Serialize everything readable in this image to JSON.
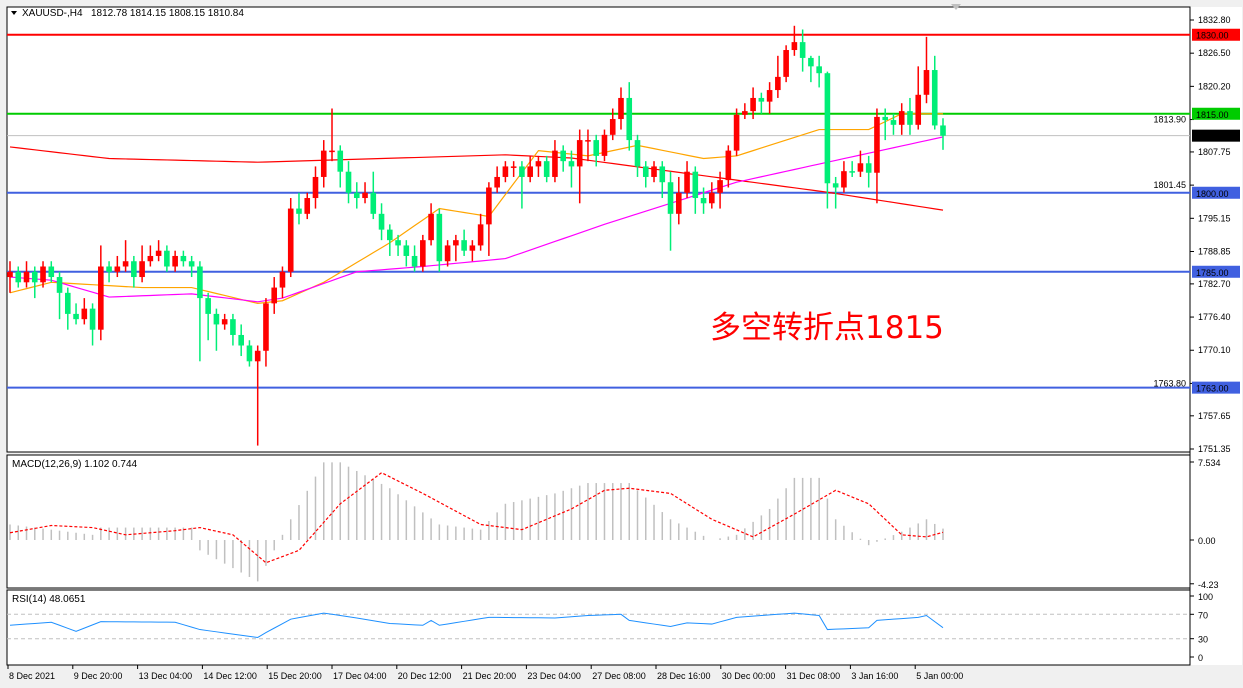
{
  "window": {
    "symbol_label": "XAUUSD-,H4",
    "ohlc_label": "1812.78 1814.15 1808.15 1810.84"
  },
  "annotation": "多空转折点1815",
  "colors": {
    "bull": "#ff0000",
    "bear": "#00ee77",
    "ma_fast": "#ffa500",
    "ma_mid": "#ff00ff",
    "ma_slow": "#ff0000",
    "res": "#ff0000",
    "pivot": "#00cc00",
    "support": "#4060e0",
    "price_line": "#c0c0c0",
    "macd_hist": "#c0c0c0",
    "macd_signal": "#ff0000",
    "rsi": "#1e90ff"
  },
  "chart_data": [
    {
      "type": "candlestick",
      "title": "XAUUSD-,H4",
      "ylim": [
        1751.35,
        1832.8
      ],
      "price_ticks": [
        "1832.80",
        "1826.50",
        "1820.20",
        "1813.90",
        "1807.75",
        "1801.45",
        "1795.15",
        "1788.85",
        "1782.70",
        "1776.40",
        "1770.10",
        "1763.80",
        "1757.65",
        "1751.35"
      ],
      "time_labels": [
        "8 Dec 2021",
        "9 Dec 20:00",
        "13 Dec 04:00",
        "14 Dec 12:00",
        "15 Dec 20:00",
        "17 Dec 04:00",
        "20 Dec 12:00",
        "21 Dec 20:00",
        "23 Dec 04:00",
        "27 Dec 08:00",
        "28 Dec 16:00",
        "30 Dec 00:00",
        "31 Dec 08:00",
        "3 Jan 16:00",
        "5 Jan 00:00"
      ],
      "levels": [
        {
          "price": 1830.0,
          "label": "1830.00",
          "kind": "res"
        },
        {
          "price": 1815.0,
          "label": "1815.00",
          "kind": "pivot"
        },
        {
          "price": 1800.0,
          "label": "1800.00",
          "kind": "support"
        },
        {
          "price": 1785.0,
          "label": "1785.00",
          "kind": "support"
        },
        {
          "price": 1763.0,
          "label": "1763.00",
          "kind": "support"
        }
      ],
      "current_price": {
        "price": 1810.84,
        "label": "1810.84"
      },
      "candles_ohlc": [
        [
          1784,
          1787,
          1781,
          1785
        ],
        [
          1785,
          1786,
          1782,
          1783
        ],
        [
          1783,
          1787,
          1782,
          1785
        ],
        [
          1785,
          1786,
          1780,
          1783
        ],
        [
          1783,
          1787,
          1782,
          1786
        ],
        [
          1786,
          1787,
          1783,
          1784
        ],
        [
          1784,
          1785,
          1776,
          1781
        ],
        [
          1781,
          1782,
          1774,
          1777
        ],
        [
          1777,
          1779,
          1775,
          1776
        ],
        [
          1776,
          1780,
          1775,
          1778
        ],
        [
          1778,
          1779,
          1771,
          1774
        ],
        [
          1774,
          1790,
          1772,
          1786
        ],
        [
          1786,
          1787,
          1783,
          1785
        ],
        [
          1785,
          1788,
          1784,
          1786
        ],
        [
          1786,
          1791,
          1785,
          1787
        ],
        [
          1787,
          1788,
          1782,
          1784
        ],
        [
          1784,
          1790,
          1783,
          1787
        ],
        [
          1787,
          1790,
          1786,
          1788
        ],
        [
          1788,
          1791,
          1787,
          1789
        ],
        [
          1789,
          1790,
          1785,
          1786
        ],
        [
          1786,
          1789,
          1785,
          1788
        ],
        [
          1788,
          1789,
          1786,
          1787
        ],
        [
          1787,
          1788,
          1784,
          1786
        ],
        [
          1786,
          1787,
          1768,
          1780
        ],
        [
          1780,
          1781,
          1772,
          1777
        ],
        [
          1777,
          1778,
          1770,
          1775
        ],
        [
          1775,
          1777,
          1774,
          1776
        ],
        [
          1776,
          1777,
          1771,
          1773
        ],
        [
          1773,
          1775,
          1769,
          1771
        ],
        [
          1771,
          1772,
          1767,
          1768
        ],
        [
          1768,
          1771,
          1752,
          1770
        ],
        [
          1770,
          1780,
          1767,
          1779
        ],
        [
          1779,
          1784,
          1777,
          1782
        ],
        [
          1782,
          1786,
          1780,
          1785
        ],
        [
          1785,
          1799,
          1784,
          1797
        ],
        [
          1797,
          1800,
          1794,
          1796
        ],
        [
          1796,
          1800,
          1795,
          1799
        ],
        [
          1799,
          1805,
          1797,
          1803
        ],
        [
          1803,
          1810,
          1801,
          1808
        ],
        [
          1808,
          1816,
          1806,
          1808
        ],
        [
          1808,
          1809,
          1801,
          1804
        ],
        [
          1804,
          1806,
          1798,
          1800
        ],
        [
          1800,
          1802,
          1797,
          1799
        ],
        [
          1799,
          1802,
          1798,
          1800
        ],
        [
          1800,
          1804,
          1795,
          1796
        ],
        [
          1796,
          1798,
          1791,
          1793
        ],
        [
          1793,
          1794,
          1788,
          1791
        ],
        [
          1791,
          1792,
          1788,
          1790
        ],
        [
          1790,
          1791,
          1786,
          1788
        ],
        [
          1788,
          1790,
          1785,
          1786
        ],
        [
          1786,
          1792,
          1785,
          1791
        ],
        [
          1791,
          1798,
          1790,
          1796
        ],
        [
          1796,
          1797,
          1785,
          1787
        ],
        [
          1787,
          1791,
          1786,
          1790
        ],
        [
          1790,
          1792,
          1787,
          1791
        ],
        [
          1791,
          1793,
          1788,
          1789
        ],
        [
          1789,
          1791,
          1787,
          1790
        ],
        [
          1790,
          1796,
          1789,
          1794
        ],
        [
          1794,
          1802,
          1788,
          1801
        ],
        [
          1801,
          1805,
          1800,
          1803
        ],
        [
          1803,
          1806,
          1802,
          1805
        ],
        [
          1805,
          1806,
          1803,
          1805
        ],
        [
          1805,
          1806,
          1797,
          1803
        ],
        [
          1803,
          1807,
          1802,
          1805
        ],
        [
          1805,
          1807,
          1803,
          1806
        ],
        [
          1806,
          1807,
          1802,
          1803
        ],
        [
          1803,
          1810,
          1802,
          1808
        ],
        [
          1808,
          1809,
          1804,
          1806
        ],
        [
          1806,
          1808,
          1801,
          1805
        ],
        [
          1805,
          1812,
          1798,
          1810
        ],
        [
          1810,
          1812,
          1806,
          1810
        ],
        [
          1810,
          1811,
          1805,
          1807
        ],
        [
          1807,
          1812,
          1806,
          1811
        ],
        [
          1811,
          1816,
          1810,
          1814
        ],
        [
          1814,
          1820,
          1812,
          1818
        ],
        [
          1818,
          1821,
          1808,
          1810
        ],
        [
          1810,
          1811,
          1803,
          1805
        ],
        [
          1805,
          1806,
          1801,
          1803
        ],
        [
          1803,
          1806,
          1802,
          1805
        ],
        [
          1805,
          1806,
          1799,
          1802
        ],
        [
          1802,
          1804,
          1789,
          1796
        ],
        [
          1796,
          1803,
          1794,
          1800
        ],
        [
          1800,
          1806,
          1799,
          1804
        ],
        [
          1804,
          1805,
          1796,
          1799
        ],
        [
          1799,
          1801,
          1796,
          1798
        ],
        [
          1798,
          1802,
          1797,
          1800
        ],
        [
          1800,
          1804,
          1797,
          1802.4
        ],
        [
          1802.4,
          1809,
          1801,
          1808
        ],
        [
          1808,
          1816,
          1807,
          1814.8
        ],
        [
          1814.8,
          1817,
          1814,
          1815.5
        ],
        [
          1815.5,
          1820,
          1814,
          1818
        ],
        [
          1818,
          1819,
          1815,
          1817.3
        ],
        [
          1817.3,
          1821,
          1815,
          1819.5
        ],
        [
          1819.5,
          1826,
          1818,
          1822
        ],
        [
          1822,
          1828,
          1821,
          1827.1
        ],
        [
          1827.1,
          1831.7,
          1826,
          1828.6
        ],
        [
          1828.6,
          1831,
          1823,
          1825.6
        ],
        [
          1825.6,
          1826,
          1821,
          1824
        ],
        [
          1824,
          1826,
          1820,
          1822.7
        ],
        [
          1822.7,
          1823,
          1797,
          1801.8
        ],
        [
          1801.8,
          1803,
          1797,
          1801
        ],
        [
          1801,
          1806,
          1800,
          1804.1
        ],
        [
          1804.1,
          1806,
          1803,
          1804
        ],
        [
          1804,
          1808,
          1803,
          1805.6
        ],
        [
          1805.6,
          1807,
          1801,
          1803.8
        ],
        [
          1803.8,
          1816,
          1798,
          1814.4
        ],
        [
          1814.4,
          1816,
          1810,
          1813.8
        ],
        [
          1813.8,
          1815,
          1811,
          1812.9
        ],
        [
          1812.9,
          1817,
          1811,
          1815.5
        ],
        [
          1815.5,
          1818,
          1811,
          1812.9
        ],
        [
          1812.9,
          1824,
          1812,
          1818.6
        ],
        [
          1818.6,
          1829.6,
          1817,
          1823.3
        ],
        [
          1823.3,
          1826,
          1812,
          1812.78
        ],
        [
          1812.78,
          1814.15,
          1808.15,
          1810.84
        ]
      ],
      "moving_averages": {
        "fast": [
          [
            0,
            1781
          ],
          [
            5,
            1783
          ],
          [
            16,
            1782
          ],
          [
            22,
            1782
          ],
          [
            30,
            1779
          ],
          [
            33,
            1779.5
          ],
          [
            38,
            1783
          ],
          [
            46,
            1790.5
          ],
          [
            52,
            1797
          ],
          [
            58,
            1795.5
          ],
          [
            64,
            1808
          ],
          [
            70,
            1807
          ],
          [
            76,
            1809
          ],
          [
            84,
            1806.5
          ],
          [
            88,
            1807
          ],
          [
            92,
            1809
          ],
          [
            98,
            1812
          ],
          [
            104,
            1812
          ],
          [
            108,
            1815
          ],
          [
            113,
            1815
          ]
        ],
        "mid": [
          [
            0,
            1784
          ],
          [
            5,
            1783.4
          ],
          [
            12,
            1780.2
          ],
          [
            22,
            1780.8
          ],
          [
            30,
            1779.3
          ],
          [
            33,
            1780
          ],
          [
            42,
            1785
          ],
          [
            50,
            1786
          ],
          [
            60,
            1787.5
          ],
          [
            72,
            1794
          ],
          [
            88,
            1802
          ],
          [
            99,
            1805.8
          ],
          [
            113,
            1810.6
          ]
        ],
        "slow": [
          [
            0,
            1808.7
          ],
          [
            12,
            1806.5
          ],
          [
            30,
            1805.8
          ],
          [
            60,
            1807.2
          ],
          [
            68,
            1806.6
          ],
          [
            88,
            1802.4
          ],
          [
            99,
            1800.1
          ],
          [
            113,
            1796.7
          ]
        ]
      }
    },
    {
      "type": "bar+line",
      "title": "MACD(12,26,9) 1.102 0.744",
      "ylim": [
        -4.23,
        7.534
      ],
      "ticks": [
        "7.534",
        "0.00",
        "-4.23"
      ],
      "histogram": [
        [
          0,
          1.5
        ],
        [
          10,
          0.5
        ],
        [
          11,
          1.2
        ],
        [
          22,
          1.2
        ],
        [
          23,
          -1
        ],
        [
          30,
          -4
        ],
        [
          34,
          2
        ],
        [
          38,
          7.5
        ],
        [
          40,
          7.5
        ],
        [
          46,
          5
        ],
        [
          52,
          1.5
        ],
        [
          57,
          1
        ],
        [
          60,
          3.5
        ],
        [
          66,
          4.5
        ],
        [
          70,
          5.5
        ],
        [
          75,
          5.5
        ],
        [
          80,
          2
        ],
        [
          85,
          0
        ],
        [
          88,
          0.5
        ],
        [
          92,
          3
        ],
        [
          95,
          6
        ],
        [
          98,
          6
        ],
        [
          100,
          2
        ],
        [
          104,
          -0.5
        ],
        [
          108,
          0.8
        ],
        [
          111,
          2
        ],
        [
          113,
          1.102
        ]
      ],
      "signal": [
        [
          0,
          0.7
        ],
        [
          5,
          1.4
        ],
        [
          10,
          1.2
        ],
        [
          14,
          0.5
        ],
        [
          20,
          0.9
        ],
        [
          23,
          1.2
        ],
        [
          27,
          0.5
        ],
        [
          31,
          -2.2
        ],
        [
          35,
          -1
        ],
        [
          40,
          3.5
        ],
        [
          45,
          6.5
        ],
        [
          50,
          4.5
        ],
        [
          57,
          1.5
        ],
        [
          62,
          1.0
        ],
        [
          68,
          3
        ],
        [
          72,
          4.8
        ],
        [
          75,
          5
        ],
        [
          80,
          4.5
        ],
        [
          85,
          2
        ],
        [
          90,
          0.3
        ],
        [
          95,
          2.5
        ],
        [
          100,
          4.8
        ],
        [
          104,
          3.5
        ],
        [
          108,
          0.5
        ],
        [
          111,
          0.3
        ],
        [
          113,
          0.744
        ]
      ]
    },
    {
      "type": "line",
      "title": "RSI(14) 48.0651",
      "ylim": [
        0,
        100
      ],
      "ticks": [
        "100",
        "70",
        "30",
        "0"
      ],
      "levels": [
        70,
        30
      ],
      "values": [
        [
          0,
          52
        ],
        [
          5,
          57
        ],
        [
          8,
          42
        ],
        [
          11,
          58
        ],
        [
          20,
          57
        ],
        [
          23,
          45
        ],
        [
          30,
          32
        ],
        [
          31,
          40
        ],
        [
          34,
          62
        ],
        [
          38,
          72
        ],
        [
          42,
          64
        ],
        [
          46,
          55
        ],
        [
          50,
          52
        ],
        [
          51,
          60
        ],
        [
          52,
          52
        ],
        [
          58,
          65
        ],
        [
          66,
          64
        ],
        [
          70,
          68
        ],
        [
          74,
          70
        ],
        [
          75,
          60
        ],
        [
          80,
          50
        ],
        [
          82,
          56
        ],
        [
          85,
          54
        ],
        [
          88,
          65
        ],
        [
          95,
          72
        ],
        [
          98,
          68
        ],
        [
          99,
          45
        ],
        [
          104,
          48
        ],
        [
          105,
          60
        ],
        [
          110,
          65
        ],
        [
          111,
          68
        ],
        [
          113,
          48.0651
        ]
      ]
    }
  ]
}
